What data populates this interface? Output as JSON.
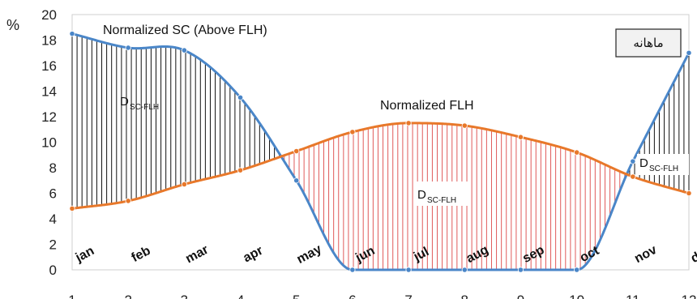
{
  "chart_data": {
    "type": "line",
    "ylabel_unit": "%",
    "x": [
      1,
      2,
      3,
      4,
      5,
      6,
      7,
      8,
      9,
      10,
      11,
      12
    ],
    "month_labels": [
      "jan",
      "feb",
      "mar",
      "apr",
      "may",
      "jun",
      "jul",
      "aug",
      "sep",
      "oct",
      "nov",
      "dec"
    ],
    "xlim": [
      1,
      12
    ],
    "ylim": [
      0,
      20
    ],
    "yticks": [
      0,
      2,
      4,
      6,
      8,
      10,
      12,
      14,
      16,
      18,
      20
    ],
    "series": [
      {
        "name": "Normalized SC (Above FLH)",
        "color": "#4a86c8",
        "values": [
          18.5,
          17.4,
          17.2,
          13.5,
          7.0,
          0,
          0,
          0,
          0,
          0,
          8.5,
          17.0
        ]
      },
      {
        "name": "Normalized FLH",
        "color": "#e8782a",
        "values": [
          4.8,
          5.4,
          6.7,
          7.8,
          9.3,
          10.8,
          11.5,
          11.3,
          10.4,
          9.2,
          7.3,
          6.0
        ]
      }
    ],
    "annotations": [
      {
        "main": "D",
        "sub": "SC-FLH",
        "region": "jan-may"
      },
      {
        "main": "D",
        "sub": "SC-FLH",
        "region": "may-oct"
      },
      {
        "main": "D",
        "sub": "SC-FLH",
        "region": "nov-dec"
      }
    ],
    "box_label": "ماهانه",
    "colors": {
      "sc": "#4a86c8",
      "flh": "#e8782a",
      "hatch_sc": "#111111",
      "hatch_flh": "#e05a5a"
    }
  }
}
